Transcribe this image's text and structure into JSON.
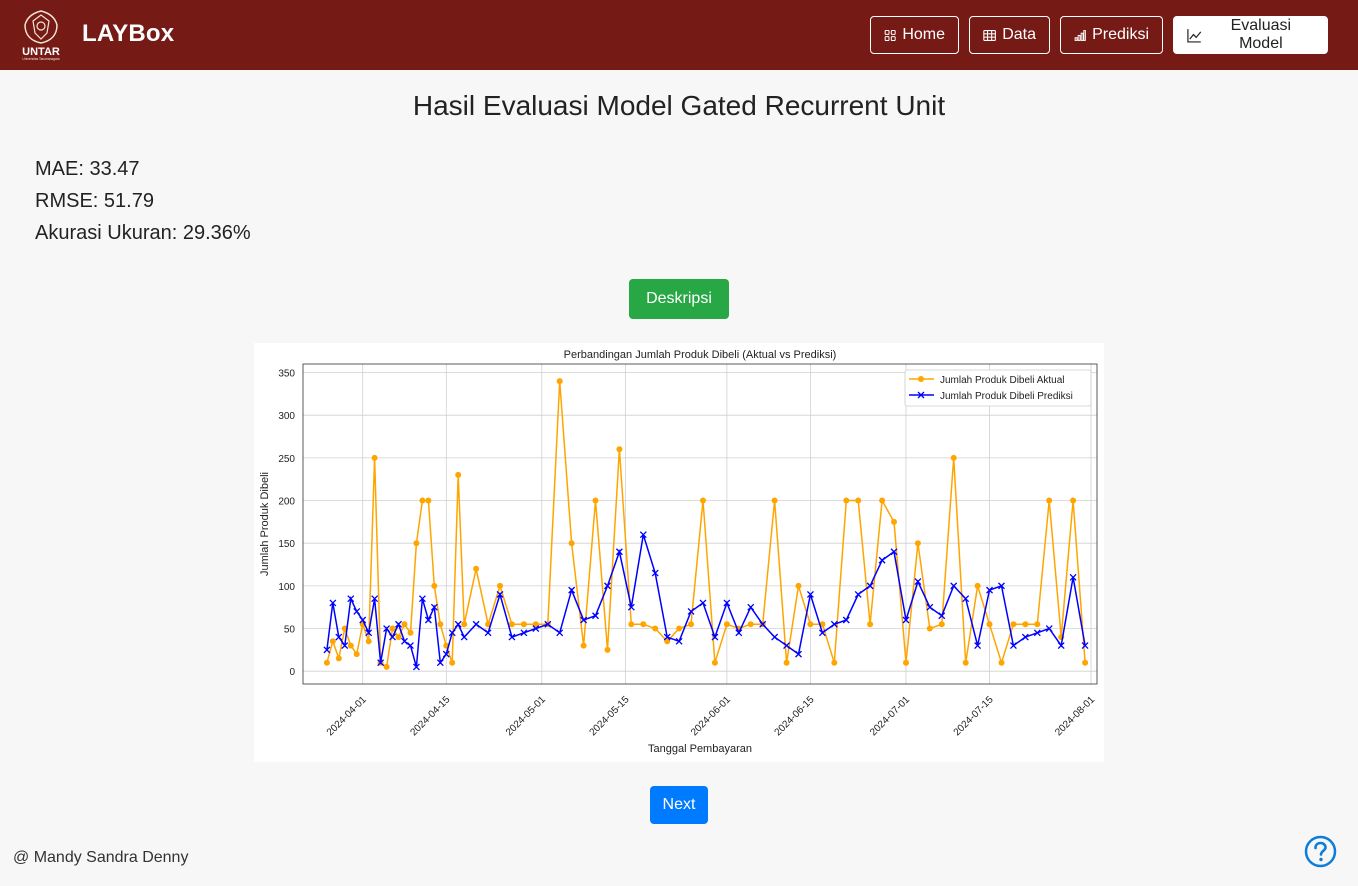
{
  "navbar": {
    "logo_text": "UNTAR",
    "logo_subtext": "Universitas Tarumanagara",
    "brand": "LAYBox",
    "items": [
      {
        "label": "Home",
        "icon": "grid-icon",
        "active": false
      },
      {
        "label": "Data",
        "icon": "table-icon",
        "active": false
      },
      {
        "label": "Prediksi",
        "icon": "bar-chart-icon",
        "active": false
      },
      {
        "label": "Evaluasi Model",
        "icon": "line-chart-icon",
        "active": true
      }
    ]
  },
  "main": {
    "title": "Hasil Evaluasi Model Gated Recurrent Unit",
    "metrics": {
      "mae": "MAE: 33.47",
      "rmse": "RMSE: 51.79",
      "accuracy": "Akurasi Ukuran: 29.36%"
    },
    "description_button": "Deskripsi",
    "next_button": "Next"
  },
  "footer": {
    "credit": "@ Mandy Sandra Denny"
  },
  "colors": {
    "navbar": "#761a16",
    "actual": "#FFA500",
    "predicted": "#0000FF",
    "green_button": "#28a745",
    "blue_button": "#007bff"
  },
  "chart_data": {
    "type": "line",
    "title": "Perbandingan Jumlah Produk Dibeli (Aktual vs Prediksi)",
    "xlabel": "Tanggal Pembayaran",
    "ylabel": "Jumlah Produk Dibeli",
    "ylim": [
      -15,
      360
    ],
    "yticks": [
      0,
      50,
      100,
      150,
      200,
      250,
      300,
      350
    ],
    "xlim": [
      "2024-03-22",
      "2024-08-02"
    ],
    "xticks": [
      "2024-04-01",
      "2024-04-15",
      "2024-05-01",
      "2024-05-15",
      "2024-06-01",
      "2024-06-15",
      "2024-07-01",
      "2024-07-15",
      "2024-08-01"
    ],
    "grid": true,
    "legend_position": "top-right",
    "x": [
      "2024-03-26",
      "2024-03-27",
      "2024-03-28",
      "2024-03-29",
      "2024-03-30",
      "2024-03-31",
      "2024-04-01",
      "2024-04-02",
      "2024-04-03",
      "2024-04-04",
      "2024-04-05",
      "2024-04-06",
      "2024-04-07",
      "2024-04-08",
      "2024-04-09",
      "2024-04-10",
      "2024-04-11",
      "2024-04-12",
      "2024-04-13",
      "2024-04-14",
      "2024-04-15",
      "2024-04-16",
      "2024-04-17",
      "2024-04-18",
      "2024-04-20",
      "2024-04-22",
      "2024-04-24",
      "2024-04-26",
      "2024-04-28",
      "2024-04-30",
      "2024-05-02",
      "2024-05-04",
      "2024-05-06",
      "2024-05-08",
      "2024-05-10",
      "2024-05-12",
      "2024-05-14",
      "2024-05-16",
      "2024-05-18",
      "2024-05-20",
      "2024-05-22",
      "2024-05-24",
      "2024-05-26",
      "2024-05-28",
      "2024-05-30",
      "2024-06-01",
      "2024-06-03",
      "2024-06-05",
      "2024-06-07",
      "2024-06-09",
      "2024-06-11",
      "2024-06-13",
      "2024-06-15",
      "2024-06-17",
      "2024-06-19",
      "2024-06-21",
      "2024-06-23",
      "2024-06-25",
      "2024-06-27",
      "2024-06-29",
      "2024-07-01",
      "2024-07-03",
      "2024-07-05",
      "2024-07-07",
      "2024-07-09",
      "2024-07-11",
      "2024-07-13",
      "2024-07-15",
      "2024-07-17",
      "2024-07-19",
      "2024-07-21",
      "2024-07-23",
      "2024-07-25",
      "2024-07-27",
      "2024-07-29",
      "2024-07-31"
    ],
    "series": [
      {
        "name": "Jumlah Produk Dibeli Aktual",
        "color": "#FFA500",
        "marker": "circle",
        "values": [
          10,
          35,
          15,
          50,
          30,
          20,
          55,
          35,
          250,
          10,
          5,
          50,
          40,
          55,
          45,
          150,
          200,
          200,
          100,
          55,
          30,
          10,
          230,
          55,
          120,
          55,
          100,
          55,
          55,
          55,
          55,
          340,
          150,
          30,
          200,
          25,
          260,
          55,
          55,
          50,
          35,
          50,
          55,
          200,
          10,
          55,
          50,
          55,
          55,
          200,
          10,
          100,
          55,
          55,
          10,
          200,
          200,
          55,
          200,
          175,
          10,
          150,
          50,
          55,
          250,
          10,
          100,
          55,
          10,
          55,
          55,
          55,
          200,
          40,
          200,
          10
        ]
      },
      {
        "name": "Jumlah Produk Dibeli Prediksi",
        "color": "#0000FF",
        "marker": "x",
        "values": [
          25,
          80,
          40,
          30,
          85,
          70,
          60,
          45,
          85,
          10,
          50,
          40,
          55,
          35,
          30,
          5,
          85,
          60,
          75,
          10,
          20,
          45,
          55,
          40,
          55,
          45,
          90,
          40,
          45,
          50,
          55,
          45,
          95,
          60,
          65,
          100,
          140,
          75,
          160,
          115,
          40,
          35,
          70,
          80,
          40,
          80,
          45,
          75,
          55,
          40,
          30,
          20,
          90,
          45,
          55,
          60,
          90,
          100,
          130,
          140,
          60,
          105,
          75,
          65,
          100,
          85,
          30,
          95,
          100,
          30,
          40,
          45,
          50,
          30,
          110,
          30
        ]
      }
    ]
  }
}
